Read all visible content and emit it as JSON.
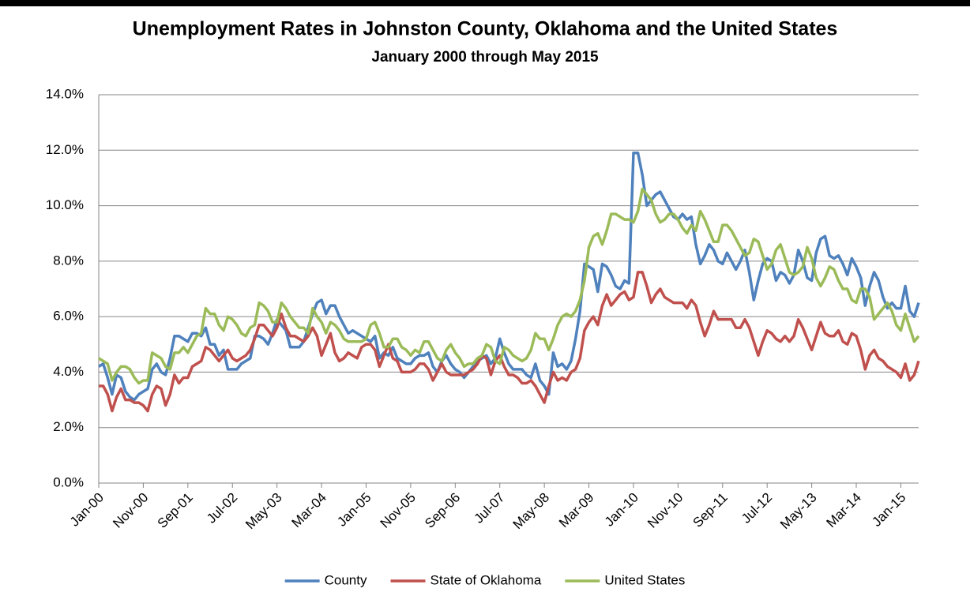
{
  "chart_data": {
    "type": "line",
    "title": "Unemployment Rates in Johnston County, Oklahoma and the United States",
    "subtitle": "January 2000 through May 2015",
    "categories": [
      "Jan-00",
      null,
      null,
      null,
      null,
      null,
      null,
      null,
      null,
      null,
      "Nov-00",
      null,
      null,
      null,
      null,
      null,
      null,
      null,
      null,
      null,
      "Sep-01",
      null,
      null,
      null,
      null,
      null,
      null,
      null,
      null,
      null,
      "Jul-02",
      null,
      null,
      null,
      null,
      null,
      null,
      null,
      null,
      null,
      "May-03",
      null,
      null,
      null,
      null,
      null,
      null,
      null,
      null,
      null,
      "Mar-04",
      null,
      null,
      null,
      null,
      null,
      null,
      null,
      null,
      null,
      "Jan-05",
      null,
      null,
      null,
      null,
      null,
      null,
      null,
      null,
      null,
      "Nov-05",
      null,
      null,
      null,
      null,
      null,
      null,
      null,
      null,
      null,
      "Sep-06",
      null,
      null,
      null,
      null,
      null,
      null,
      null,
      null,
      null,
      "Jul-07",
      null,
      null,
      null,
      null,
      null,
      null,
      null,
      null,
      null,
      "May-08",
      null,
      null,
      null,
      null,
      null,
      null,
      null,
      null,
      null,
      "Mar-09",
      null,
      null,
      null,
      null,
      null,
      null,
      null,
      null,
      null,
      "Jan-10",
      null,
      null,
      null,
      null,
      null,
      null,
      null,
      null,
      null,
      "Nov-10",
      null,
      null,
      null,
      null,
      null,
      null,
      null,
      null,
      null,
      "Sep-11",
      null,
      null,
      null,
      null,
      null,
      null,
      null,
      null,
      null,
      "Jul-12",
      null,
      null,
      null,
      null,
      null,
      null,
      null,
      null,
      null,
      "May-13",
      null,
      null,
      null,
      null,
      null,
      null,
      null,
      null,
      null,
      "Mar-14",
      null,
      null,
      null,
      null,
      null,
      null,
      null,
      null,
      null,
      "Jan-15",
      null,
      null,
      null,
      null
    ],
    "series": [
      {
        "name": "County",
        "color": "#4f81bd",
        "values": [
          4.2,
          4.3,
          3.8,
          3.2,
          3.9,
          3.8,
          3.3,
          3.1,
          3.0,
          3.2,
          3.3,
          3.4,
          4.1,
          4.3,
          4.0,
          3.9,
          4.5,
          5.3,
          5.3,
          5.2,
          5.1,
          5.4,
          5.4,
          5.3,
          5.6,
          5.0,
          5.0,
          4.6,
          4.8,
          4.1,
          4.1,
          4.1,
          4.3,
          4.4,
          4.5,
          5.3,
          5.3,
          5.2,
          5.0,
          5.4,
          5.9,
          5.7,
          5.5,
          4.9,
          4.9,
          4.9,
          5.1,
          5.6,
          6.1,
          6.5,
          6.6,
          6.1,
          6.4,
          6.4,
          6.0,
          5.7,
          5.4,
          5.5,
          5.4,
          5.3,
          5.2,
          5.1,
          5.3,
          4.5,
          4.7,
          4.6,
          4.9,
          4.5,
          4.4,
          4.3,
          4.3,
          4.5,
          4.6,
          4.6,
          4.7,
          4.2,
          4.0,
          4.4,
          4.6,
          4.3,
          4.1,
          4.0,
          3.8,
          4.0,
          4.2,
          4.4,
          4.5,
          4.6,
          4.3,
          4.5,
          5.2,
          4.7,
          4.3,
          4.1,
          4.1,
          4.1,
          3.9,
          3.8,
          4.3,
          3.7,
          3.5,
          3.2,
          4.7,
          4.2,
          4.3,
          4.1,
          4.4,
          5.2,
          6.2,
          7.9,
          7.8,
          7.7,
          6.9,
          7.9,
          7.8,
          7.5,
          7.1,
          7.0,
          7.3,
          7.2,
          11.9,
          11.9,
          11.1,
          10.0,
          10.2,
          10.4,
          10.5,
          10.2,
          9.9,
          9.6,
          9.5,
          9.7,
          9.5,
          9.6,
          8.6,
          7.9,
          8.2,
          8.6,
          8.4,
          8.0,
          7.9,
          8.3,
          8.0,
          7.7,
          8.0,
          8.4,
          7.6,
          6.6,
          7.3,
          7.9,
          8.1,
          8.0,
          7.3,
          7.6,
          7.5,
          7.2,
          7.5,
          8.4,
          8.0,
          7.4,
          7.3,
          8.3,
          8.8,
          8.9,
          8.2,
          8.1,
          8.2,
          7.9,
          7.5,
          8.1,
          7.8,
          7.4,
          6.4,
          7.1,
          7.6,
          7.3,
          6.7,
          6.3,
          6.5,
          6.3,
          6.3,
          7.1,
          6.2,
          6.0,
          6.5
        ]
      },
      {
        "name": "State of Oklahoma",
        "color": "#c0504d",
        "values": [
          3.5,
          3.5,
          3.2,
          2.6,
          3.1,
          3.4,
          3.0,
          3.0,
          2.9,
          2.9,
          2.8,
          2.6,
          3.2,
          3.5,
          3.4,
          2.8,
          3.2,
          3.9,
          3.6,
          3.8,
          3.8,
          4.2,
          4.3,
          4.4,
          4.9,
          4.8,
          4.6,
          4.4,
          4.6,
          4.8,
          4.5,
          4.4,
          4.5,
          4.6,
          4.8,
          5.2,
          5.7,
          5.7,
          5.5,
          5.3,
          5.6,
          6.1,
          5.6,
          5.3,
          5.3,
          5.2,
          5.1,
          5.3,
          5.6,
          5.3,
          4.6,
          5.0,
          5.4,
          4.7,
          4.4,
          4.5,
          4.7,
          4.6,
          4.5,
          4.9,
          5.0,
          5.0,
          4.8,
          4.2,
          4.6,
          5.0,
          4.5,
          4.4,
          4.0,
          4.0,
          4.0,
          4.1,
          4.3,
          4.3,
          4.1,
          3.7,
          4.0,
          4.3,
          4.0,
          3.9,
          3.9,
          3.9,
          3.9,
          4.0,
          4.1,
          4.3,
          4.6,
          4.5,
          3.9,
          4.4,
          4.6,
          4.2,
          3.9,
          3.9,
          3.8,
          3.6,
          3.6,
          3.7,
          3.5,
          3.2,
          2.9,
          3.5,
          4.0,
          3.7,
          3.8,
          3.7,
          4.0,
          4.1,
          4.5,
          5.5,
          5.8,
          6.0,
          5.7,
          6.4,
          6.8,
          6.4,
          6.6,
          6.8,
          6.9,
          6.6,
          6.7,
          7.6,
          7.6,
          7.1,
          6.5,
          6.8,
          7.0,
          6.7,
          6.6,
          6.5,
          6.5,
          6.5,
          6.3,
          6.6,
          6.4,
          5.8,
          5.3,
          5.7,
          6.2,
          5.9,
          5.9,
          5.9,
          5.9,
          5.6,
          5.6,
          5.9,
          5.6,
          5.1,
          4.6,
          5.1,
          5.5,
          5.4,
          5.2,
          5.1,
          5.3,
          5.1,
          5.3,
          5.9,
          5.6,
          5.2,
          4.8,
          5.3,
          5.8,
          5.4,
          5.3,
          5.3,
          5.5,
          5.1,
          5.0,
          5.4,
          5.3,
          4.8,
          4.1,
          4.6,
          4.8,
          4.5,
          4.4,
          4.2,
          4.1,
          4.0,
          3.8,
          4.3,
          3.7,
          3.9,
          4.4
        ]
      },
      {
        "name": "United States",
        "color": "#9bbb59",
        "values": [
          4.5,
          4.4,
          4.3,
          3.7,
          4.0,
          4.2,
          4.2,
          4.1,
          3.8,
          3.6,
          3.7,
          3.7,
          4.7,
          4.6,
          4.5,
          4.2,
          4.1,
          4.7,
          4.7,
          4.9,
          4.7,
          5.0,
          5.3,
          5.4,
          6.3,
          6.1,
          6.1,
          5.7,
          5.5,
          6.0,
          5.9,
          5.7,
          5.4,
          5.3,
          5.6,
          5.7,
          6.5,
          6.4,
          6.2,
          5.8,
          5.8,
          6.5,
          6.3,
          6.0,
          5.8,
          5.6,
          5.6,
          5.4,
          6.3,
          6.0,
          5.8,
          5.4,
          5.8,
          5.7,
          5.5,
          5.2,
          5.1,
          5.1,
          5.1,
          5.1,
          5.2,
          5.7,
          5.8,
          5.4,
          4.9,
          4.9,
          5.2,
          5.2,
          4.9,
          4.8,
          4.6,
          4.8,
          4.7,
          5.1,
          5.1,
          4.8,
          4.5,
          4.4,
          4.8,
          5.0,
          4.7,
          4.5,
          4.2,
          4.3,
          4.3,
          4.5,
          4.6,
          5.0,
          4.9,
          4.4,
          4.3,
          4.9,
          4.8,
          4.6,
          4.5,
          4.4,
          4.5,
          4.8,
          5.4,
          5.2,
          5.2,
          4.8,
          5.2,
          5.7,
          6.0,
          6.1,
          6.0,
          6.2,
          6.6,
          7.3,
          8.5,
          8.9,
          9.0,
          8.6,
          9.1,
          9.7,
          9.7,
          9.6,
          9.5,
          9.5,
          9.4,
          9.8,
          10.6,
          10.4,
          10.2,
          9.7,
          9.4,
          9.5,
          9.7,
          9.7,
          9.5,
          9.2,
          9.0,
          9.3,
          9.1,
          9.8,
          9.5,
          9.1,
          8.7,
          8.7,
          9.3,
          9.3,
          9.1,
          8.8,
          8.5,
          8.2,
          8.3,
          8.8,
          8.7,
          8.2,
          7.7,
          7.9,
          8.4,
          8.6,
          8.1,
          7.6,
          7.5,
          7.6,
          7.8,
          8.5,
          8.1,
          7.4,
          7.1,
          7.4,
          7.8,
          7.7,
          7.3,
          7.0,
          7.0,
          6.6,
          6.5,
          7.0,
          7.0,
          6.7,
          5.9,
          6.1,
          6.3,
          6.5,
          6.2,
          5.7,
          5.5,
          6.1,
          5.6,
          5.1,
          5.3
        ]
      }
    ],
    "ylim": [
      0,
      14
    ],
    "yticks": [
      {
        "value": 0,
        "label": "0.0%"
      },
      {
        "value": 2,
        "label": "2.0%"
      },
      {
        "value": 4,
        "label": "4.0%"
      },
      {
        "value": 6,
        "label": "6.0%"
      },
      {
        "value": 8,
        "label": "8.0%"
      },
      {
        "value": 10,
        "label": "10.0%"
      },
      {
        "value": 12,
        "label": "12.0%"
      },
      {
        "value": 14,
        "label": "14.0%"
      }
    ],
    "grid": true,
    "legend": "bottom"
  }
}
